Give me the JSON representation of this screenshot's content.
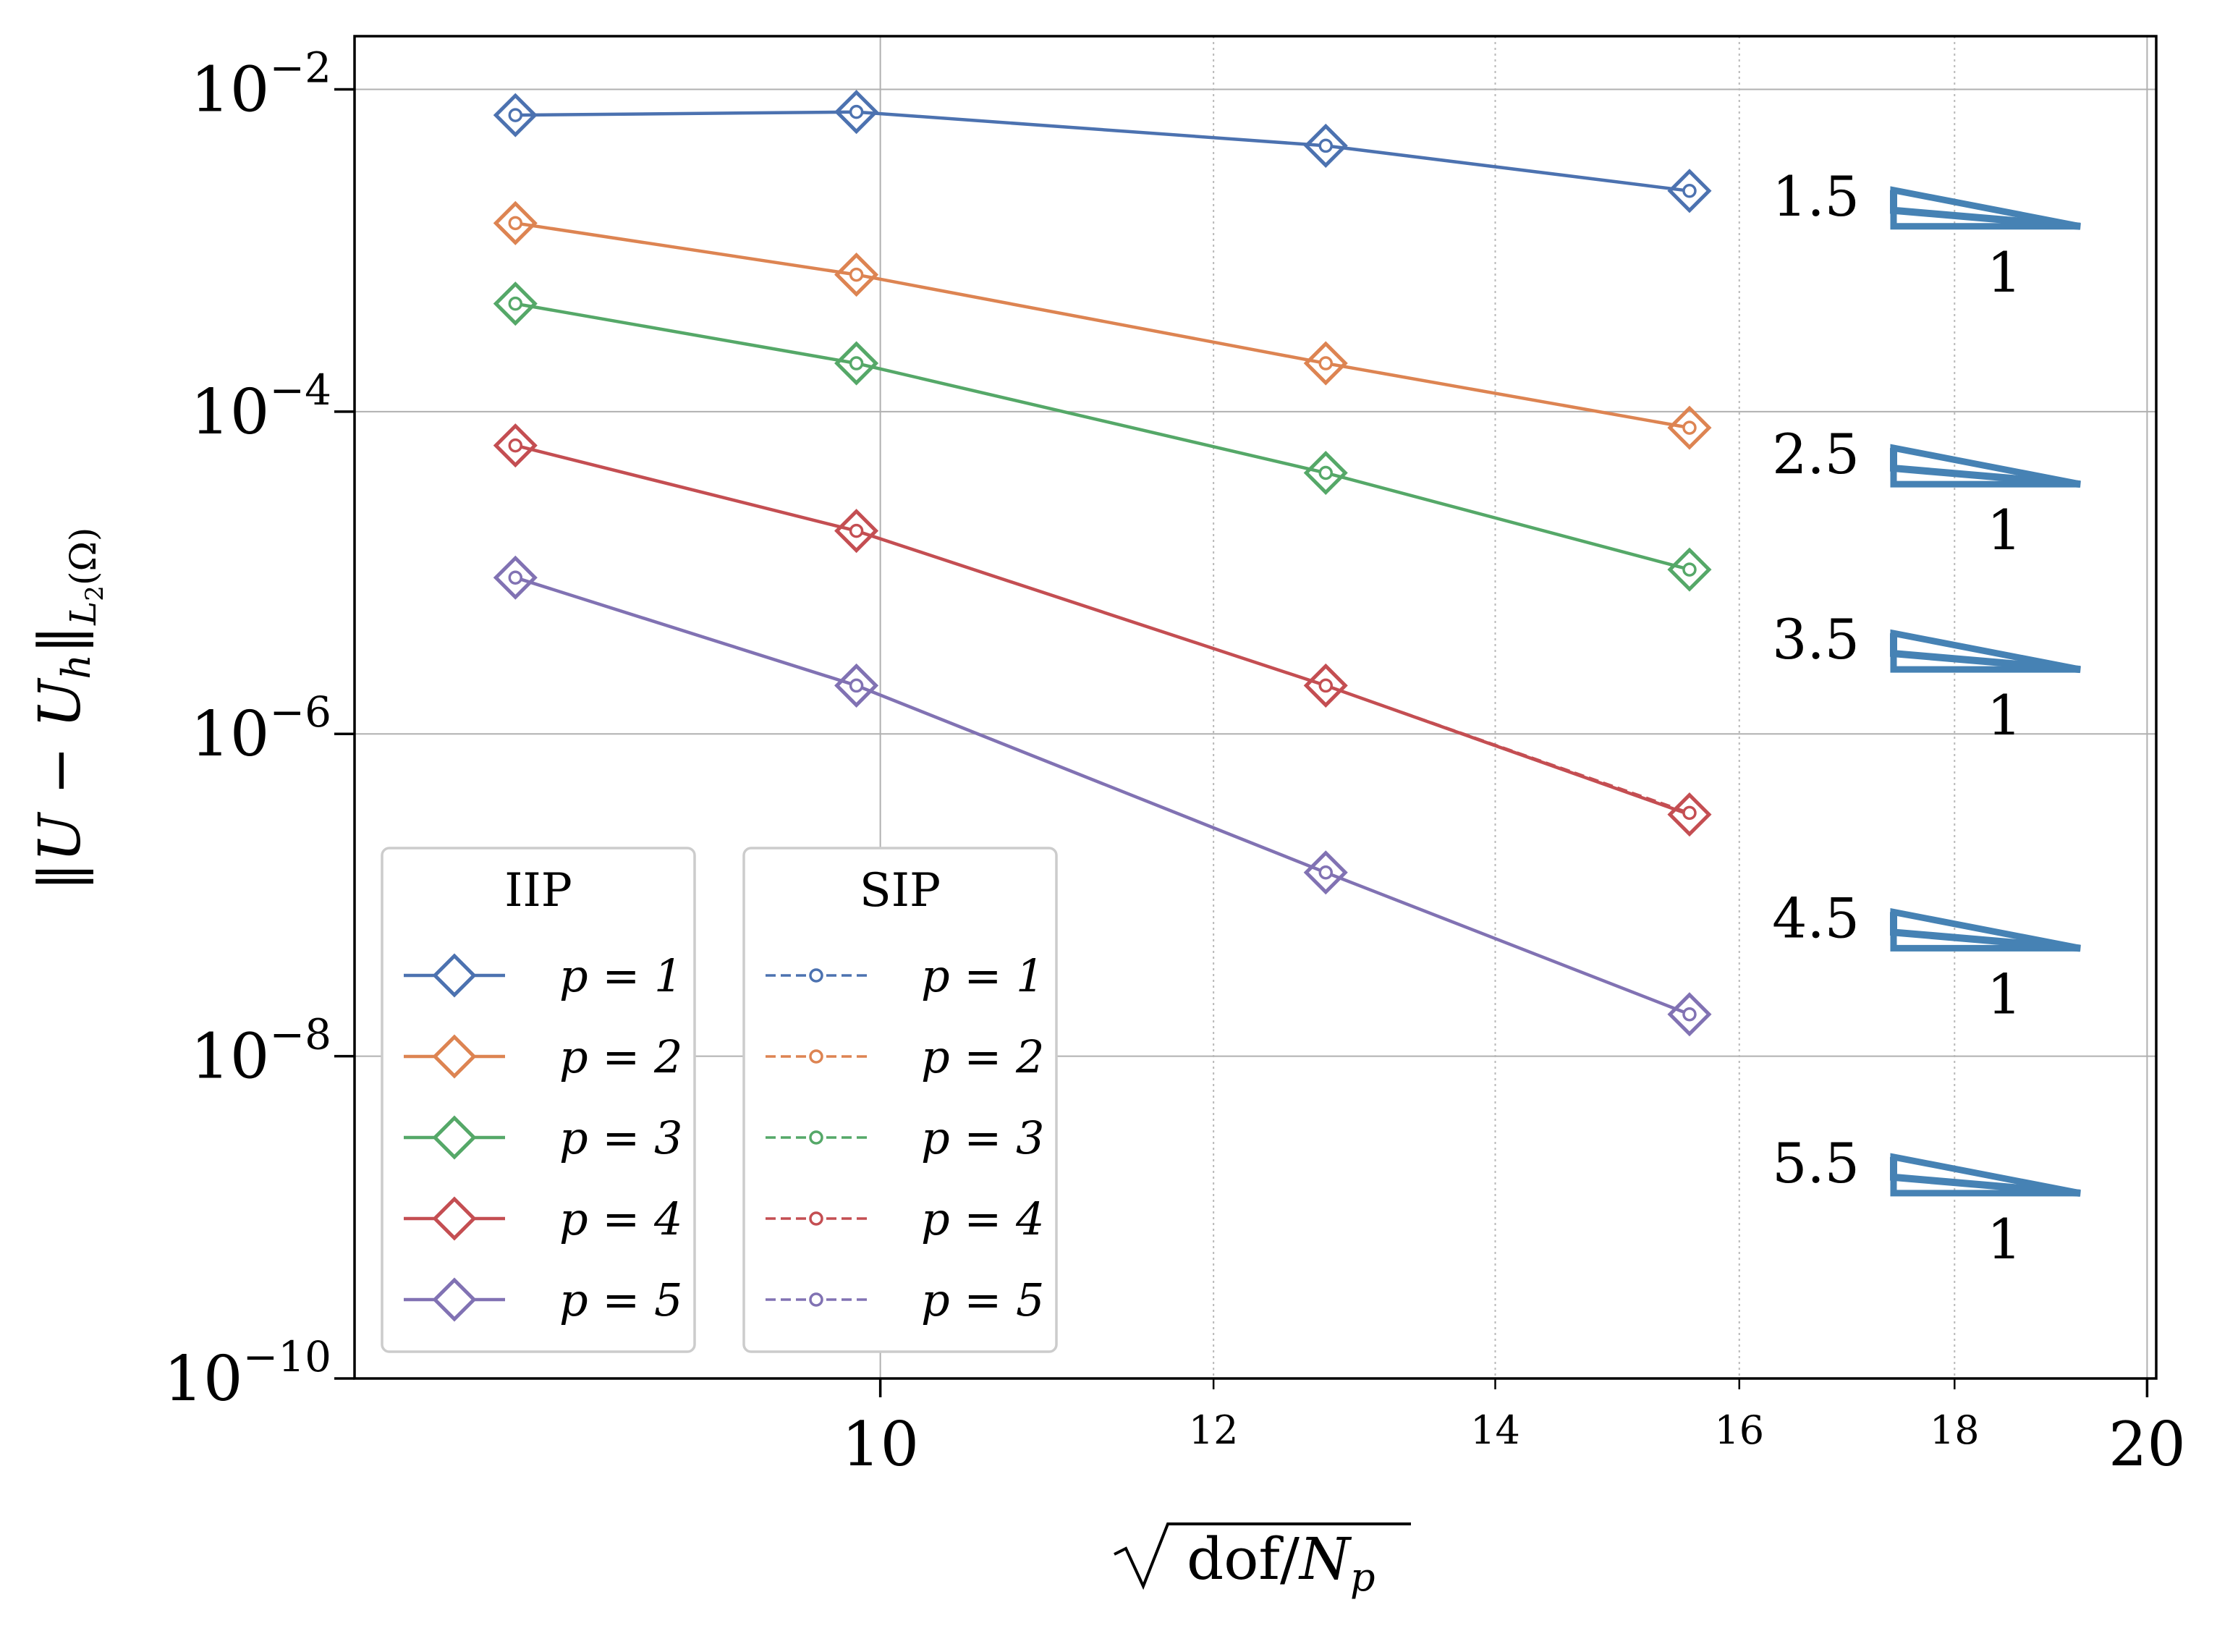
{
  "chart_data": {
    "type": "line",
    "xscale": "log",
    "yscale": "log",
    "xlim": [
      7.5,
      20.1
    ],
    "ylim_exp": [
      -10,
      -1.67
    ],
    "x": [
      8.19,
      9.87,
      12.76,
      15.57
    ],
    "series": [
      {
        "name": "IIP p=1",
        "method": "IIP",
        "color": "#4c72b0",
        "log10_y": [
          -2.16,
          -2.14,
          -2.35,
          -2.63
        ]
      },
      {
        "name": "IIP p=2",
        "method": "IIP",
        "color": "#dd8452",
        "log10_y": [
          -2.83,
          -3.15,
          -3.7,
          -4.1
        ]
      },
      {
        "name": "IIP p=3",
        "method": "IIP",
        "color": "#55a868",
        "log10_y": [
          -3.33,
          -3.7,
          -4.38,
          -4.98
        ]
      },
      {
        "name": "IIP p=4",
        "method": "IIP",
        "color": "#c44e52",
        "log10_y": [
          -4.21,
          -4.74,
          -5.7,
          -6.5
        ]
      },
      {
        "name": "IIP p=5",
        "method": "IIP",
        "color": "#8172b3",
        "log10_y": [
          -5.03,
          -5.7,
          -6.86,
          -7.74
        ]
      },
      {
        "name": "SIP p=1",
        "method": "SIP",
        "color": "#4c72b0",
        "log10_y": [
          -2.16,
          -2.14,
          -2.35,
          -2.63
        ]
      },
      {
        "name": "SIP p=2",
        "method": "SIP",
        "color": "#dd8452",
        "log10_y": [
          -2.83,
          -3.15,
          -3.7,
          -4.1
        ]
      },
      {
        "name": "SIP p=3",
        "method": "SIP",
        "color": "#55a868",
        "log10_y": [
          -3.33,
          -3.7,
          -4.38,
          -4.98
        ]
      },
      {
        "name": "SIP p=4",
        "method": "SIP",
        "color": "#c44e52",
        "log10_y": [
          -4.21,
          -4.74,
          -5.7,
          -6.49
        ]
      },
      {
        "name": "SIP p=5",
        "method": "SIP",
        "color": "#8172b3",
        "log10_y": [
          -5.03,
          -5.7,
          -6.86,
          -7.74
        ]
      }
    ],
    "y_ticks": [
      {
        "exp": -2,
        "label": "10",
        "sup": "−2"
      },
      {
        "exp": -4,
        "label": "10",
        "sup": "−4"
      },
      {
        "exp": -6,
        "label": "10",
        "sup": "−6"
      },
      {
        "exp": -8,
        "label": "10",
        "sup": "−8"
      },
      {
        "exp": -10,
        "label": "10",
        "sup": "−10"
      }
    ],
    "x_major_ticks": [
      {
        "value": 10,
        "label": "10"
      },
      {
        "value": 20,
        "label": "20"
      }
    ],
    "x_minor_ticks": [
      {
        "value": 12,
        "label": "12"
      },
      {
        "value": 14,
        "label": "14"
      },
      {
        "value": 16,
        "label": "16"
      },
      {
        "value": 18,
        "label": "18"
      }
    ],
    "xlabel": {
      "base": "dof/",
      "var": "N",
      "sub": "p"
    },
    "ylabel": {
      "pre": "‖",
      "u": "U",
      "minus": " − ",
      "uh": "U",
      "h": "h",
      "post": "‖",
      "sub": "L",
      "subsub": "2",
      "omega": "(Ω)"
    },
    "legend": [
      {
        "title": "IIP",
        "entries": [
          "p = 1",
          "p = 2",
          "p = 3",
          "p = 4",
          "p = 5"
        ]
      },
      {
        "title": "SIP",
        "entries": [
          "p = 1",
          "p = 2",
          "p = 3",
          "p = 4",
          "p = 5"
        ]
      }
    ],
    "slope_triangles": [
      {
        "rate": "1.5",
        "run": "1",
        "log10_y": -2.85
      },
      {
        "rate": "2.5",
        "run": "1",
        "log10_y": -4.45
      },
      {
        "rate": "3.5",
        "run": "1",
        "log10_y": -5.6
      },
      {
        "rate": "4.5",
        "run": "1",
        "log10_y": -7.33
      },
      {
        "rate": "5.5",
        "run": "1",
        "log10_y": -8.85
      }
    ],
    "triangle_color": "#4682b4",
    "grid": true,
    "legend_position": "lower-left"
  }
}
